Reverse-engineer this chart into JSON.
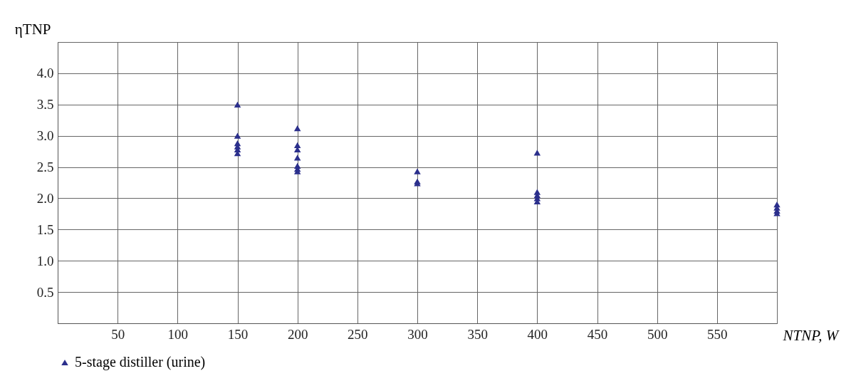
{
  "chart_data": {
    "type": "scatter",
    "xlabel": "NTNP, W",
    "ylabel": "ηTNP",
    "xlim": [
      0,
      600
    ],
    "ylim": [
      0,
      4.5
    ],
    "xticks": [
      {
        "value": 0,
        "label": null
      },
      50,
      100,
      150,
      200,
      250,
      300,
      350,
      400,
      450,
      500,
      550,
      {
        "value": 600,
        "label": null
      }
    ],
    "yticks": [
      {
        "value": 0,
        "label": null
      },
      0.5,
      {
        "value": 1,
        "label": "1.0"
      },
      1.5,
      {
        "value": 2,
        "label": "2.0"
      },
      2.5,
      {
        "value": 3,
        "label": "3.0"
      },
      3.5,
      {
        "value": 4,
        "label": "4.0"
      },
      {
        "value": 4.5,
        "label": null
      }
    ],
    "grid": true,
    "legend": "bottom",
    "marker": "triangle",
    "series": [
      {
        "name": "5-stage distiller (urine)",
        "color": "#2b2f8c",
        "x": [
          150,
          150,
          150,
          150,
          150,
          150,
          200,
          200,
          200,
          200,
          200,
          200,
          200,
          300,
          300,
          300,
          400,
          400,
          400,
          400,
          400,
          600,
          600,
          600,
          600
        ],
        "values": [
          3.5,
          3.0,
          2.88,
          2.83,
          2.78,
          2.72,
          3.12,
          2.85,
          2.78,
          2.65,
          2.52,
          2.47,
          2.43,
          2.43,
          2.27,
          2.24,
          2.73,
          2.1,
          2.05,
          2.0,
          1.95,
          1.9,
          1.85,
          1.8,
          1.76
        ]
      }
    ]
  }
}
